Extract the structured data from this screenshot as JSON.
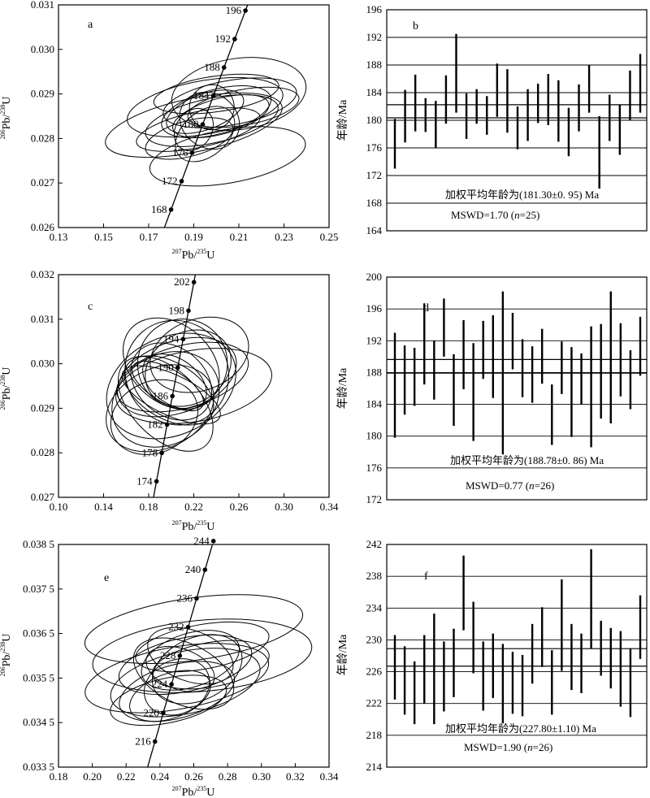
{
  "chart_data": [
    {
      "panel": "a",
      "type": "scatter",
      "subtype": "concordia",
      "xlabel": {
        "mass1": "207",
        "el1": "Pb",
        "sep": "/",
        "mass2": "235",
        "el2": "U"
      },
      "ylabel": {
        "mass1": "206",
        "el1": "Pb",
        "sep": "/",
        "mass2": "238",
        "el2": "U"
      },
      "xlim": [
        0.13,
        0.25
      ],
      "ylim": [
        0.026,
        0.031
      ],
      "xticks": [
        0.13,
        0.15,
        0.17,
        0.19,
        0.21,
        0.23,
        0.25
      ],
      "xtick_labels": [
        "0.13",
        "0.15",
        "0.17",
        "0.19",
        "0.21",
        "0.23",
        "0.25"
      ],
      "yticks": [
        0.026,
        0.027,
        0.028,
        0.029,
        0.03,
        0.031
      ],
      "ytick_labels": [
        "0.026",
        "0.027",
        "0.028",
        "0.029",
        "0.030",
        "0.031"
      ],
      "concordia_ages": [
        168,
        172,
        176,
        180,
        184,
        188,
        192,
        196
      ],
      "concordia_labels": [
        "168",
        "172",
        "176",
        "180",
        "184",
        "188",
        "192",
        "196"
      ],
      "ellipses": [
        {
          "x": 0.19,
          "y": 0.0283,
          "rx": 0.04,
          "ry": 0.0006,
          "rot": -12
        },
        {
          "x": 0.21,
          "y": 0.029,
          "rx": 0.03,
          "ry": 0.0008,
          "rot": -8
        },
        {
          "x": 0.195,
          "y": 0.0287,
          "rx": 0.035,
          "ry": 0.0006,
          "rot": -10
        },
        {
          "x": 0.205,
          "y": 0.0276,
          "rx": 0.035,
          "ry": 0.0006,
          "rot": -10
        },
        {
          "x": 0.2,
          "y": 0.0286,
          "rx": 0.025,
          "ry": 0.0005,
          "rot": -15
        },
        {
          "x": 0.198,
          "y": 0.0284,
          "rx": 0.03,
          "ry": 0.0005,
          "rot": -12
        },
        {
          "x": 0.192,
          "y": 0.0282,
          "rx": 0.028,
          "ry": 0.0004,
          "rot": -12
        },
        {
          "x": 0.206,
          "y": 0.0288,
          "rx": 0.03,
          "ry": 0.0005,
          "rot": -10
        },
        {
          "x": 0.202,
          "y": 0.0285,
          "rx": 0.022,
          "ry": 0.0004,
          "rot": -15
        },
        {
          "x": 0.195,
          "y": 0.0281,
          "rx": 0.015,
          "ry": 0.0005,
          "rot": -40
        },
        {
          "x": 0.197,
          "y": 0.0284,
          "rx": 0.012,
          "ry": 0.0007,
          "rot": -55
        },
        {
          "x": 0.188,
          "y": 0.028,
          "rx": 0.02,
          "ry": 0.0004,
          "rot": -15
        },
        {
          "x": 0.212,
          "y": 0.0287,
          "rx": 0.025,
          "ry": 0.0004,
          "rot": -10
        },
        {
          "x": 0.2,
          "y": 0.029,
          "rx": 0.028,
          "ry": 0.0004,
          "rot": -8
        },
        {
          "x": 0.195,
          "y": 0.0286,
          "rx": 0.018,
          "ry": 0.0004,
          "rot": -20
        },
        {
          "x": 0.198,
          "y": 0.0287,
          "rx": 0.01,
          "ry": 0.0005,
          "rot": -60
        },
        {
          "x": 0.19,
          "y": 0.0282,
          "rx": 0.01,
          "ry": 0.0004,
          "rot": -55
        }
      ]
    },
    {
      "panel": "b",
      "type": "bar",
      "subtype": "weighted-mean",
      "ylabel": "年龄/Ma",
      "ylim": [
        164,
        196
      ],
      "yticks": [
        164,
        168,
        172,
        176,
        180,
        184,
        188,
        192,
        196
      ],
      "ytick_labels": [
        "164",
        "168",
        "172",
        "176",
        "180",
        "184",
        "188",
        "192",
        "196"
      ],
      "mean": 181.3,
      "mean_err": 0.95,
      "mean_label": "加权平均年龄为(181.30±0. 95) Ma",
      "mswd_label_pre": "MSWD=1.70 (",
      "mswd_n": "n",
      "mswd_label_post": "=25)",
      "values": [
        [
          173.0,
          180.2
        ],
        [
          176.8,
          184.4
        ],
        [
          178.4,
          186.6
        ],
        [
          178.3,
          183.2
        ],
        [
          176.0,
          182.8
        ],
        [
          179.5,
          186.5
        ],
        [
          181.1,
          192.5
        ],
        [
          177.3,
          183.9
        ],
        [
          179.5,
          184.5
        ],
        [
          177.9,
          183.5
        ],
        [
          180.5,
          188.2
        ],
        [
          178.2,
          187.4
        ],
        [
          175.8,
          182.0
        ],
        [
          177.0,
          184.5
        ],
        [
          179.6,
          185.3
        ],
        [
          179.3,
          186.7
        ],
        [
          176.9,
          185.8
        ],
        [
          174.8,
          181.8
        ],
        [
          178.4,
          185.2
        ],
        [
          181.1,
          188.0
        ],
        [
          170.1,
          180.6
        ],
        [
          177.0,
          183.7
        ],
        [
          175.0,
          182.2
        ],
        [
          180.0,
          187.2
        ],
        [
          181.1,
          189.6
        ]
      ]
    },
    {
      "panel": "c",
      "type": "scatter",
      "subtype": "concordia",
      "xlabel": {
        "mass1": "207",
        "el1": "Pb",
        "sep": "/",
        "mass2": "235",
        "el2": "U"
      },
      "ylabel": {
        "mass1": "206",
        "el1": "Pb",
        "sep": "/",
        "mass2": "238",
        "el2": "U"
      },
      "xlim": [
        0.1,
        0.34
      ],
      "ylim": [
        0.027,
        0.032
      ],
      "xticks": [
        0.1,
        0.14,
        0.18,
        0.22,
        0.26,
        0.3,
        0.34
      ],
      "xtick_labels": [
        "0.10",
        "0.14",
        "0.18",
        "0.22",
        "0.26",
        "0.30",
        "0.34"
      ],
      "yticks": [
        0.027,
        0.028,
        0.029,
        0.03,
        0.031,
        0.032
      ],
      "ytick_labels": [
        "0.027",
        "0.028",
        "0.029",
        "0.030",
        "0.031",
        "0.032"
      ],
      "concordia_ages": [
        174,
        178,
        182,
        186,
        190,
        194,
        198,
        202
      ],
      "concordia_labels": [
        "174",
        "178",
        "182",
        "186",
        "190",
        "194",
        "198",
        "202"
      ],
      "ellipses": [
        {
          "x": 0.2,
          "y": 0.0295,
          "rx": 0.06,
          "ry": 0.0011,
          "rot": -25
        },
        {
          "x": 0.22,
          "y": 0.0295,
          "rx": 0.07,
          "ry": 0.0008,
          "rot": -10
        },
        {
          "x": 0.195,
          "y": 0.0292,
          "rx": 0.05,
          "ry": 0.001,
          "rot": -30
        },
        {
          "x": 0.205,
          "y": 0.0298,
          "rx": 0.045,
          "ry": 0.0012,
          "rot": -40
        },
        {
          "x": 0.21,
          "y": 0.03,
          "rx": 0.04,
          "ry": 0.001,
          "rot": -35
        },
        {
          "x": 0.2,
          "y": 0.0296,
          "rx": 0.03,
          "ry": 0.001,
          "rot": -50
        },
        {
          "x": 0.198,
          "y": 0.0294,
          "rx": 0.025,
          "ry": 0.0011,
          "rot": -60
        },
        {
          "x": 0.205,
          "y": 0.0297,
          "rx": 0.055,
          "ry": 0.0008,
          "rot": -20
        },
        {
          "x": 0.19,
          "y": 0.029,
          "rx": 0.05,
          "ry": 0.0009,
          "rot": -25
        },
        {
          "x": 0.215,
          "y": 0.0299,
          "rx": 0.04,
          "ry": 0.0008,
          "rot": -30
        },
        {
          "x": 0.2,
          "y": 0.0293,
          "rx": 0.018,
          "ry": 0.0012,
          "rot": -65
        },
        {
          "x": 0.197,
          "y": 0.0295,
          "rx": 0.015,
          "ry": 0.0009,
          "rot": -60
        },
        {
          "x": 0.203,
          "y": 0.0296,
          "rx": 0.02,
          "ry": 0.0008,
          "rot": -55
        },
        {
          "x": 0.185,
          "y": 0.0288,
          "rx": 0.04,
          "ry": 0.0008,
          "rot": -25
        },
        {
          "x": 0.225,
          "y": 0.0302,
          "rx": 0.045,
          "ry": 0.0008,
          "rot": -20
        },
        {
          "x": 0.195,
          "y": 0.0291,
          "rx": 0.03,
          "ry": 0.0013,
          "rot": -45
        },
        {
          "x": 0.21,
          "y": 0.0297,
          "rx": 0.06,
          "ry": 0.0007,
          "rot": -15
        },
        {
          "x": 0.2,
          "y": 0.03,
          "rx": 0.035,
          "ry": 0.0012,
          "rot": -50
        }
      ]
    },
    {
      "panel": "d",
      "type": "bar",
      "subtype": "weighted-mean",
      "ylabel": "年龄/Ma",
      "ylim": [
        172,
        200
      ],
      "yticks": [
        172,
        176,
        180,
        184,
        188,
        192,
        196,
        200
      ],
      "ytick_labels": [
        "172",
        "176",
        "180",
        "184",
        "188",
        "192",
        "196",
        "200"
      ],
      "mean": 188.78,
      "mean_err": 0.86,
      "mean_label": "加权平均年龄为(188.78±0. 86) Ma",
      "mswd_label_pre": "MSWD=0.77 (",
      "mswd_n": "n",
      "mswd_label_post": "=26)",
      "values": [
        [
          179.8,
          193.0
        ],
        [
          182.7,
          191.4
        ],
        [
          183.8,
          191.1
        ],
        [
          186.5,
          196.7
        ],
        [
          184.6,
          192.0
        ],
        [
          190.0,
          197.3
        ],
        [
          181.3,
          190.3
        ],
        [
          185.9,
          194.6
        ],
        [
          179.4,
          191.7
        ],
        [
          187.2,
          194.5
        ],
        [
          184.8,
          195.2
        ],
        [
          177.7,
          198.2
        ],
        [
          188.4,
          195.5
        ],
        [
          184.9,
          192.2
        ],
        [
          184.2,
          191.3
        ],
        [
          186.6,
          193.5
        ],
        [
          178.9,
          186.5
        ],
        [
          185.3,
          191.9
        ],
        [
          179.9,
          191.2
        ],
        [
          184.0,
          190.4
        ],
        [
          178.6,
          193.8
        ],
        [
          182.2,
          194.1
        ],
        [
          181.6,
          198.2
        ],
        [
          185.0,
          194.2
        ],
        [
          183.4,
          190.8
        ],
        [
          187.6,
          195.0
        ]
      ]
    },
    {
      "panel": "e",
      "type": "scatter",
      "subtype": "concordia",
      "xlabel": {
        "mass1": "207",
        "el1": "Pb",
        "sep": "/",
        "mass2": "235",
        "el2": "U"
      },
      "ylabel": {
        "mass1": "206",
        "el1": "Pb",
        "sep": "/",
        "mass2": "238",
        "el2": "U"
      },
      "xlim": [
        0.18,
        0.34
      ],
      "ylim": [
        0.0335,
        0.0385
      ],
      "xticks": [
        0.18,
        0.2,
        0.22,
        0.24,
        0.26,
        0.28,
        0.3,
        0.32,
        0.34
      ],
      "xtick_labels": [
        "0.18",
        "0.20",
        "0.22",
        "0.24",
        "0.26",
        "0.28",
        "0.30",
        "0.32",
        "0.34"
      ],
      "yticks": [
        0.0335,
        0.0345,
        0.0355,
        0.0365,
        0.0375,
        0.0385
      ],
      "ytick_labels": [
        "0.033 5",
        "0.034 5",
        "0.035 5",
        "0.036 5",
        "0.037 5",
        "0.038 5"
      ],
      "concordia_ages": [
        216,
        220,
        224,
        228,
        232,
        236,
        240,
        244
      ],
      "concordia_labels": [
        "216",
        "220",
        "224",
        "228",
        "232",
        "236",
        "240",
        "244"
      ],
      "ellipses": [
        {
          "x": 0.26,
          "y": 0.0366,
          "rx": 0.065,
          "ry": 0.0007,
          "rot": -8
        },
        {
          "x": 0.265,
          "y": 0.036,
          "rx": 0.065,
          "ry": 0.0008,
          "rot": -5
        },
        {
          "x": 0.25,
          "y": 0.0355,
          "rx": 0.055,
          "ry": 0.0007,
          "rot": -10
        },
        {
          "x": 0.255,
          "y": 0.0354,
          "rx": 0.045,
          "ry": 0.0007,
          "rot": -12
        },
        {
          "x": 0.255,
          "y": 0.0358,
          "rx": 0.04,
          "ry": 0.0006,
          "rot": -12
        },
        {
          "x": 0.25,
          "y": 0.0352,
          "rx": 0.035,
          "ry": 0.0006,
          "rot": -15
        },
        {
          "x": 0.258,
          "y": 0.0359,
          "rx": 0.03,
          "ry": 0.0006,
          "rot": -18
        },
        {
          "x": 0.246,
          "y": 0.0351,
          "rx": 0.025,
          "ry": 0.0005,
          "rot": -20
        },
        {
          "x": 0.262,
          "y": 0.0357,
          "rx": 0.028,
          "ry": 0.0007,
          "rot": -25
        },
        {
          "x": 0.254,
          "y": 0.0356,
          "rx": 0.018,
          "ry": 0.0012,
          "rot": -65
        },
        {
          "x": 0.258,
          "y": 0.036,
          "rx": 0.015,
          "ry": 0.001,
          "rot": -70
        },
        {
          "x": 0.25,
          "y": 0.0353,
          "rx": 0.02,
          "ry": 0.0006,
          "rot": -25
        },
        {
          "x": 0.265,
          "y": 0.0362,
          "rx": 0.04,
          "ry": 0.0005,
          "rot": -10
        },
        {
          "x": 0.245,
          "y": 0.035,
          "rx": 0.035,
          "ry": 0.0005,
          "rot": -12
        },
        {
          "x": 0.27,
          "y": 0.0358,
          "rx": 0.035,
          "ry": 0.0005,
          "rot": -10
        },
        {
          "x": 0.252,
          "y": 0.0357,
          "rx": 0.012,
          "ry": 0.0008,
          "rot": -70
        }
      ]
    },
    {
      "panel": "f",
      "type": "bar",
      "subtype": "weighted-mean",
      "ylabel": "年龄/Ma",
      "ylim": [
        214,
        242
      ],
      "yticks": [
        214,
        218,
        222,
        226,
        230,
        234,
        238,
        242
      ],
      "ytick_labels": [
        "214",
        "218",
        "222",
        "226",
        "230",
        "234",
        "238",
        "242"
      ],
      "mean": 227.8,
      "mean_err": 1.1,
      "mean_label": "加权平均年龄为(227.80±1.10) Ma",
      "mswd_label_pre": "MSWD=1.90 (",
      "mswd_n": "n",
      "mswd_label_post": "=26)",
      "values": [
        [
          222.5,
          230.6
        ],
        [
          220.6,
          229.2
        ],
        [
          219.4,
          227.3
        ],
        [
          222.0,
          230.6
        ],
        [
          219.4,
          233.3
        ],
        [
          221.0,
          229.8
        ],
        [
          222.8,
          231.4
        ],
        [
          231.2,
          240.6
        ],
        [
          225.8,
          234.8
        ],
        [
          221.1,
          229.8
        ],
        [
          222.7,
          230.8
        ],
        [
          219.5,
          229.5
        ],
        [
          220.7,
          228.5
        ],
        [
          220.4,
          228.1
        ],
        [
          224.5,
          232.0
        ],
        [
          226.6,
          234.1
        ],
        [
          220.6,
          228.7
        ],
        [
          226.1,
          237.6
        ],
        [
          223.7,
          232.0
        ],
        [
          223.3,
          230.8
        ],
        [
          228.9,
          241.4
        ],
        [
          225.5,
          232.4
        ],
        [
          223.9,
          231.5
        ],
        [
          221.6,
          231.1
        ],
        [
          220.3,
          228.9
        ],
        [
          227.6,
          235.6
        ]
      ]
    }
  ]
}
